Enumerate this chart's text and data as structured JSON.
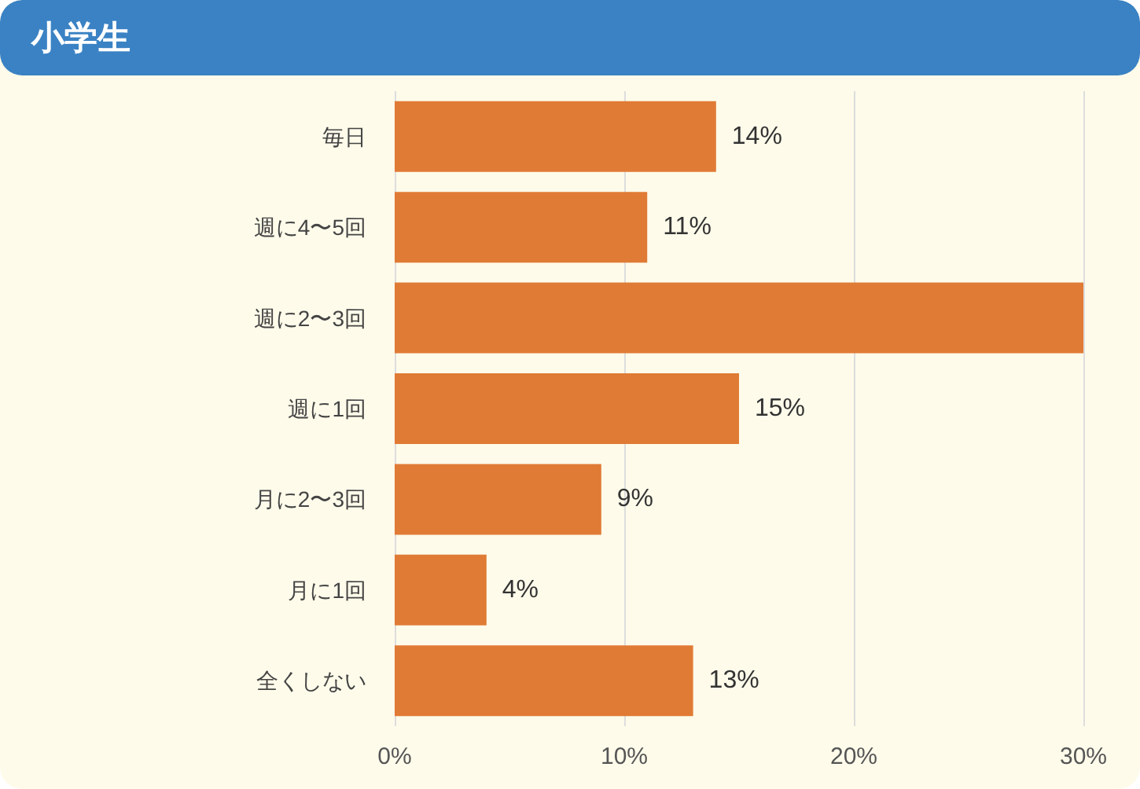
{
  "chart_data": {
    "type": "bar",
    "orientation": "horizontal",
    "title": "小学生",
    "categories": [
      "毎日",
      "週に4〜5回",
      "週に2〜3回",
      "週に1回",
      "月に2〜3回",
      "月に1回",
      "全くしない"
    ],
    "values": [
      14,
      11,
      30,
      15,
      9,
      4,
      13
    ],
    "value_labels": [
      "14%",
      "11%",
      null,
      "15%",
      "9%",
      "4%",
      "13%"
    ],
    "color": "#e07b35",
    "xlim": [
      0,
      30
    ],
    "xticks": [
      {
        "value": 0,
        "label": "0%"
      },
      {
        "value": 10,
        "label": "10%"
      },
      {
        "value": 20,
        "label": "20%"
      },
      {
        "value": 30,
        "label": "30%"
      }
    ],
    "grid": "x"
  }
}
